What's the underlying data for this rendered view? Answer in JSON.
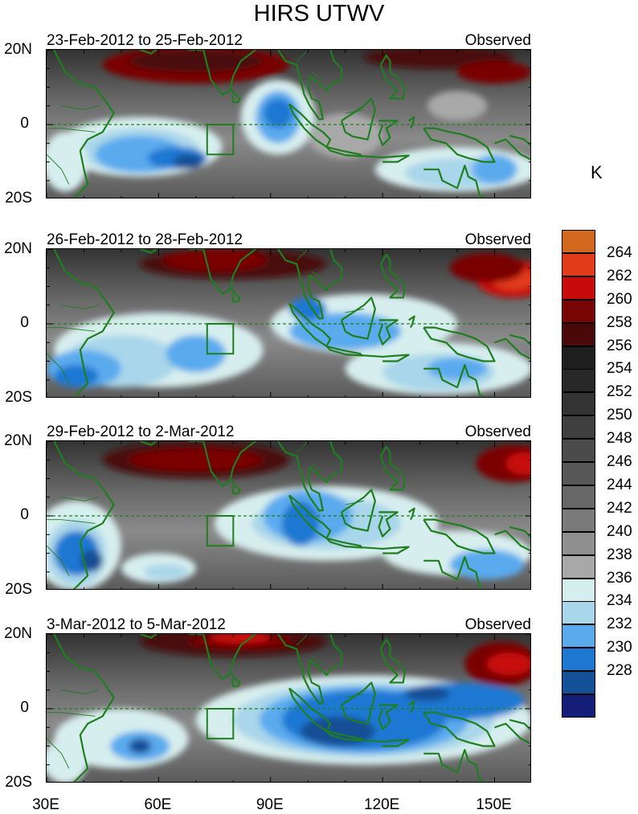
{
  "title": "HIRS UTWV",
  "units": "K",
  "panels": [
    {
      "title": "23-Feb-2012 to 25-Feb-2012",
      "label": "Observed"
    },
    {
      "title": "26-Feb-2012 to 28-Feb-2012",
      "label": "Observed"
    },
    {
      "title": "29-Feb-2012 to 2-Mar-2012",
      "label": "Observed"
    },
    {
      "title": "3-Mar-2012 to 5-Mar-2012",
      "label": "Observed"
    }
  ],
  "lat_ticks": [
    "20N",
    "0",
    "20S"
  ],
  "lon_ticks": [
    "30E",
    "60E",
    "90E",
    "120E",
    "150E"
  ],
  "map_extent": {
    "lon": [
      30,
      160
    ],
    "lat": [
      -20,
      20
    ]
  },
  "colorbar": {
    "labels": [
      "264",
      "262",
      "260",
      "258",
      "256",
      "254",
      "252",
      "250",
      "248",
      "246",
      "244",
      "242",
      "240",
      "238",
      "236",
      "234",
      "232",
      "230",
      "228"
    ],
    "colors": [
      "#d2691e",
      "#e23b1a",
      "#c80a0a",
      "#7a0505",
      "#4a0808",
      "#1e1e1e",
      "#282828",
      "#333333",
      "#3f3f3f",
      "#4b4b4b",
      "#585858",
      "#676767",
      "#7a7a7a",
      "#8f8f8f",
      "#a8a8a8",
      "#d7eeee",
      "#a9d6ea",
      "#5aaaee",
      "#1e78d2",
      "#145096",
      "#141e78"
    ]
  },
  "colors": {
    "coastline": "#1f7f1f",
    "equator": "#1f7f1f"
  }
}
